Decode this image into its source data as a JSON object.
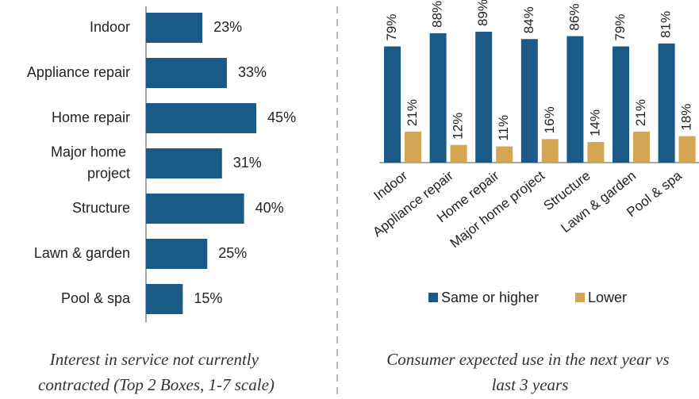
{
  "chart_data": [
    {
      "type": "bar",
      "orientation": "horizontal",
      "title": "Interest in service not currently contracted (Top 2 Boxes, 1-7 scale)",
      "categories": [
        "Indoor",
        "Appliance repair",
        "Home repair",
        "Major home project",
        "Structure",
        "Lawn & garden",
        "Pool & spa"
      ],
      "values": [
        23,
        33,
        45,
        31,
        40,
        25,
        15
      ],
      "value_labels": [
        "23%",
        "33%",
        "45%",
        "31%",
        "40%",
        "25%",
        "15%"
      ],
      "color": "#1b5a86"
    },
    {
      "type": "bar",
      "title": "Consumer expected use in the next year vs last 3 years",
      "categories": [
        "Indoor",
        "Appliance repair",
        "Home repair",
        "Major home project",
        "Structure",
        "Lawn & garden",
        "Pool & spa"
      ],
      "series": [
        {
          "name": "Same or higher",
          "color": "#1b5a86",
          "values": [
            79,
            88,
            89,
            84,
            86,
            79,
            81
          ],
          "value_labels": [
            "79%",
            "88%",
            "89%",
            "84%",
            "86%",
            "79%",
            "81%"
          ]
        },
        {
          "name": "Lower",
          "color": "#d4a553",
          "values": [
            21,
            12,
            11,
            16,
            14,
            21,
            18
          ],
          "value_labels": [
            "21%",
            "12%",
            "11%",
            "16%",
            "14%",
            "21%",
            "18%"
          ]
        }
      ],
      "legend": "bottom"
    }
  ]
}
